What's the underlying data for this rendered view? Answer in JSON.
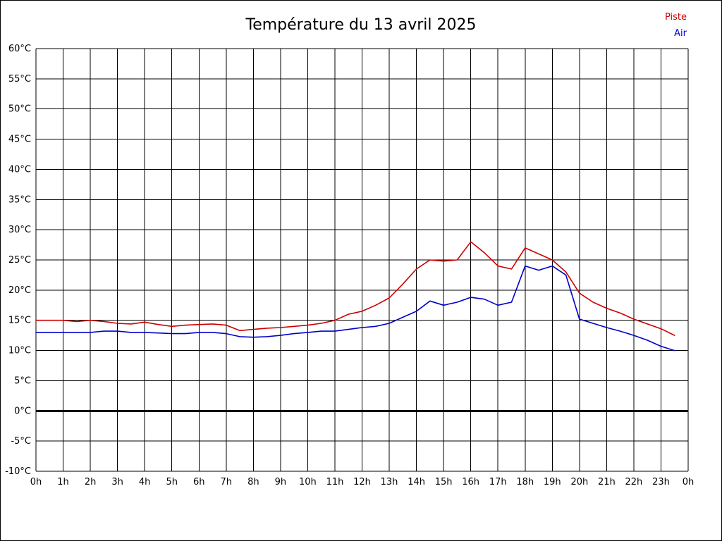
{
  "title": "Température du 13 avril 2025",
  "legend": {
    "items": [
      {
        "label": "Piste",
        "color": "#cc0000"
      },
      {
        "label": "Air",
        "color": "#0000cc"
      }
    ]
  },
  "chart_data": {
    "type": "line",
    "title": "Température du 13 avril 2025",
    "xlabel": "",
    "ylabel": "",
    "xlim": [
      0,
      24
    ],
    "ylim": [
      -10,
      60
    ],
    "grid": true,
    "zero_line": true,
    "legend_position": "top-right",
    "x_tick_labels": [
      "0h",
      "1h",
      "2h",
      "3h",
      "4h",
      "5h",
      "6h",
      "7h",
      "8h",
      "9h",
      "10h",
      "11h",
      "12h",
      "13h",
      "14h",
      "15h",
      "16h",
      "17h",
      "18h",
      "19h",
      "20h",
      "21h",
      "22h",
      "23h",
      "0h"
    ],
    "y_tick_labels": [
      "60°C",
      "55°C",
      "50°C",
      "45°C",
      "40°C",
      "35°C",
      "30°C",
      "25°C",
      "20°C",
      "15°C",
      "10°C",
      "5°C",
      "0°C",
      "-5°C",
      "-10°C"
    ],
    "y_tick_values": [
      60,
      55,
      50,
      45,
      40,
      35,
      30,
      25,
      20,
      15,
      10,
      5,
      0,
      -5,
      -10
    ],
    "x": [
      0,
      0.5,
      1,
      1.5,
      2,
      2.5,
      3,
      3.5,
      4,
      4.5,
      5,
      5.5,
      6,
      6.5,
      7,
      7.5,
      8,
      8.5,
      9,
      9.5,
      10,
      10.5,
      11,
      11.5,
      12,
      12.5,
      13,
      13.5,
      14,
      14.5,
      15,
      15.5,
      16,
      16.5,
      17,
      17.5,
      18,
      18.5,
      19,
      19.5,
      20,
      20.5,
      21,
      21.5,
      22,
      22.5,
      23,
      23.5
    ],
    "series": [
      {
        "name": "Piste",
        "color": "#cc0000",
        "values": [
          15,
          15,
          15,
          14.8,
          15,
          14.8,
          14.5,
          14.4,
          14.7,
          14.3,
          14,
          14.2,
          14.3,
          14.4,
          14.2,
          13.3,
          13.5,
          13.7,
          13.8,
          14,
          14.2,
          14.5,
          15,
          16,
          16.5,
          17.5,
          18.7,
          21,
          23.5,
          25,
          24.8,
          25,
          28,
          26.2,
          24,
          23.5,
          27,
          26,
          25,
          23,
          19.5,
          18,
          17,
          16.2,
          15.2,
          14.4,
          13.6,
          12.5
        ]
      },
      {
        "name": "Air",
        "color": "#0000cc",
        "values": [
          13,
          13,
          13,
          13,
          13,
          13.2,
          13.2,
          13,
          13,
          12.9,
          12.8,
          12.8,
          13,
          13,
          12.8,
          12.3,
          12.2,
          12.3,
          12.5,
          12.8,
          13,
          13.2,
          13.2,
          13.5,
          13.8,
          14,
          14.5,
          15.5,
          16.5,
          18.2,
          17.5,
          18,
          18.8,
          18.5,
          17.5,
          18,
          24,
          23.3,
          24,
          22.5,
          15.2,
          14.5,
          13.8,
          13.2,
          12.5,
          11.7,
          10.7,
          10
        ]
      }
    ]
  }
}
